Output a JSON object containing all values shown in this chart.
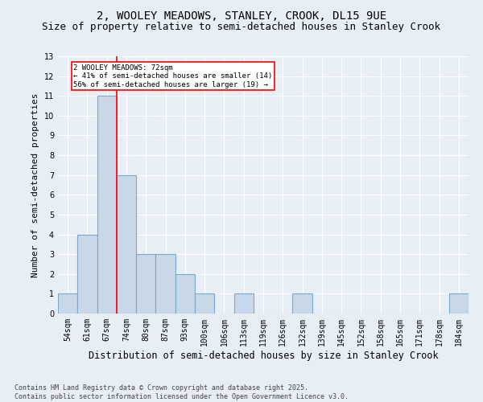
{
  "title_line1": "2, WOOLEY MEADOWS, STANLEY, CROOK, DL15 9UE",
  "title_line2": "Size of property relative to semi-detached houses in Stanley Crook",
  "xlabel": "Distribution of semi-detached houses by size in Stanley Crook",
  "ylabel": "Number of semi-detached properties",
  "categories": [
    "54sqm",
    "61sqm",
    "67sqm",
    "74sqm",
    "80sqm",
    "87sqm",
    "93sqm",
    "100sqm",
    "106sqm",
    "113sqm",
    "119sqm",
    "126sqm",
    "132sqm",
    "139sqm",
    "145sqm",
    "152sqm",
    "158sqm",
    "165sqm",
    "171sqm",
    "178sqm",
    "184sqm"
  ],
  "values": [
    1,
    4,
    11,
    7,
    3,
    3,
    2,
    1,
    0,
    1,
    0,
    0,
    1,
    0,
    0,
    0,
    0,
    0,
    0,
    0,
    1
  ],
  "bar_color": "#c8d8e8",
  "bar_edge_color": "#7aa8c8",
  "red_line_x": 2.5,
  "annotation_text": "2 WOOLEY MEADOWS: 72sqm\n← 41% of semi-detached houses are smaller (14)\n56% of semi-detached houses are larger (19) →",
  "annotation_box_color": "white",
  "annotation_box_edge_color": "red",
  "ylim": [
    0,
    13
  ],
  "yticks": [
    0,
    1,
    2,
    3,
    4,
    5,
    6,
    7,
    8,
    9,
    10,
    11,
    12,
    13
  ],
  "background_color": "#e8eef5",
  "plot_bg_color": "#e8eef5",
  "grid_color": "white",
  "footer_line1": "Contains HM Land Registry data © Crown copyright and database right 2025.",
  "footer_line2": "Contains public sector information licensed under the Open Government Licence v3.0.",
  "title_fontsize": 10,
  "subtitle_fontsize": 9,
  "tick_fontsize": 7,
  "ylabel_fontsize": 8,
  "xlabel_fontsize": 8.5,
  "footer_fontsize": 6
}
